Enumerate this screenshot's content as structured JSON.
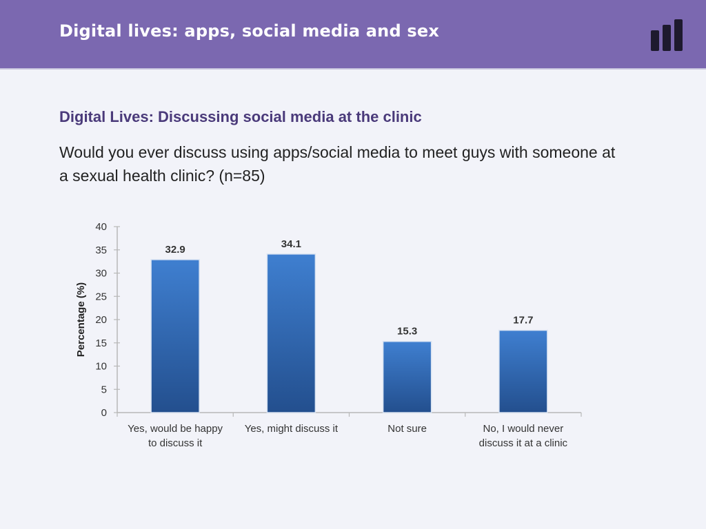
{
  "header": {
    "title": "Digital lives: apps, social media and sex",
    "logo_icon": "bar-chart-icon",
    "background_color": "#7b68b0"
  },
  "slide": {
    "title": "Digital Lives: Discussing social media at the clinic",
    "question": "Would you ever discuss using apps/social media to meet guys with someone at a sexual health clinic? (n=85)"
  },
  "chart_data": {
    "type": "bar",
    "categories": [
      [
        "Yes, would be happy",
        "to discuss it"
      ],
      [
        "Yes, might discuss it"
      ],
      [
        "Not sure"
      ],
      [
        "No, I would never",
        "discuss it at a clinic"
      ]
    ],
    "values": [
      32.9,
      34.1,
      15.3,
      17.7
    ],
    "data_labels": [
      "32.9",
      "34.1",
      "15.3",
      "17.7"
    ],
    "ylabel": "Percentage (%)",
    "ylim": [
      0,
      40
    ],
    "yticks": [
      0,
      5,
      10,
      15,
      20,
      25,
      30,
      35,
      40
    ],
    "grid": false,
    "bar_color_top": "#3f7fd0",
    "bar_color_bottom": "#234f8e"
  }
}
